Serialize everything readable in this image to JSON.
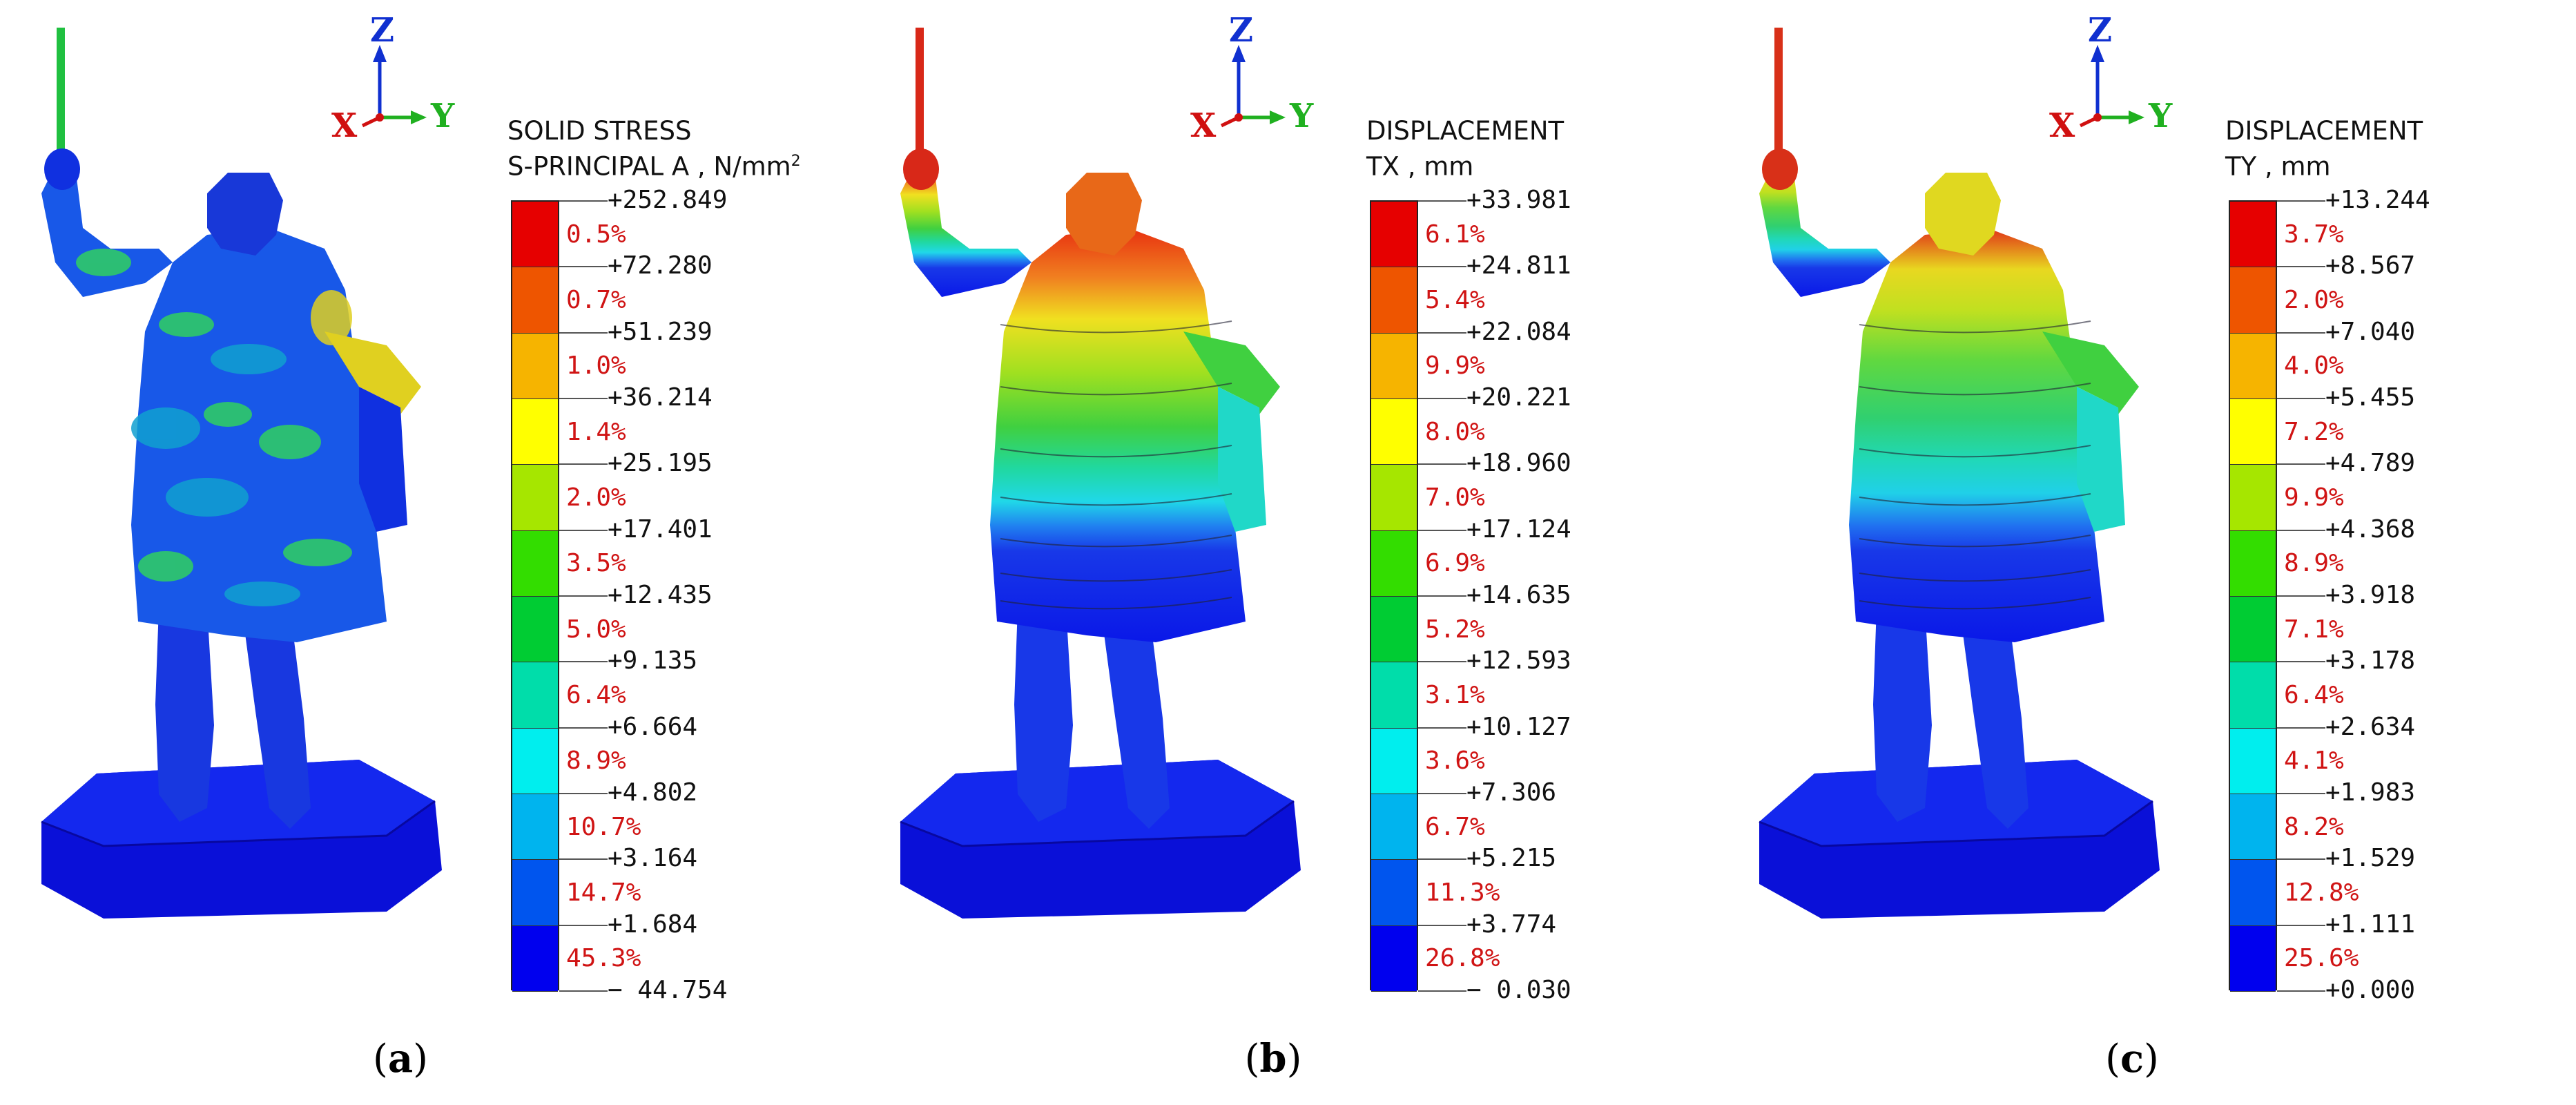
{
  "panels": [
    {
      "caption_open": "(",
      "caption_letter": "a",
      "caption_close": ")",
      "triad": {
        "z": "Z",
        "x": "X",
        "y": "Y"
      },
      "legend": {
        "title_line1": "SOLID STRESS",
        "title_line2": "S-PRINCIPAL A , N/mm",
        "title_sup": "2"
      },
      "colors": [
        "#e60000",
        "#ee5500",
        "#f6b400",
        "#ffff00",
        "#a6e600",
        "#33dd00",
        "#00cc33",
        "#00ddaa",
        "#00eeee",
        "#00b4ee",
        "#0055ee",
        "#0000ee"
      ],
      "tick_values": [
        "+252.849",
        "+72.280",
        "+51.239",
        "+36.214",
        "+25.195",
        "+17.401",
        "+12.435",
        "+9.135",
        "+6.664",
        "+4.802",
        "+3.164",
        "+1.684",
        "− 44.754"
      ],
      "percentages": [
        "0.5%",
        "0.7%",
        "1.0%",
        "1.4%",
        "2.0%",
        "3.5%",
        "5.0%",
        "6.4%",
        "8.9%",
        "10.7%",
        "14.7%",
        "45.3%"
      ]
    },
    {
      "caption_open": "(",
      "caption_letter": "b",
      "caption_close": ")",
      "triad": {
        "z": "Z",
        "x": "X",
        "y": "Y"
      },
      "legend": {
        "title_line1": "DISPLACEMENT",
        "title_line2": "TX , mm",
        "title_sup": ""
      },
      "colors": [
        "#e60000",
        "#ee5500",
        "#f6b400",
        "#ffff00",
        "#a6e600",
        "#33dd00",
        "#00cc33",
        "#00ddaa",
        "#00eeee",
        "#00b4ee",
        "#0055ee",
        "#0000ee"
      ],
      "tick_values": [
        "+33.981",
        "+24.811",
        "+22.084",
        "+20.221",
        "+18.960",
        "+17.124",
        "+14.635",
        "+12.593",
        "+10.127",
        "+7.306",
        "+5.215",
        "+3.774",
        "− 0.030"
      ],
      "percentages": [
        "6.1%",
        "5.4%",
        "9.9%",
        "8.0%",
        "7.0%",
        "6.9%",
        "5.2%",
        "3.1%",
        "3.6%",
        "6.7%",
        "11.3%",
        "26.8%"
      ]
    },
    {
      "caption_open": "(",
      "caption_letter": "c",
      "caption_close": ")",
      "triad": {
        "z": "Z",
        "x": "X",
        "y": "Y"
      },
      "legend": {
        "title_line1": "DISPLACEMENT",
        "title_line2": "TY , mm",
        "title_sup": ""
      },
      "colors": [
        "#e60000",
        "#ee5500",
        "#f6b400",
        "#ffff00",
        "#a6e600",
        "#33dd00",
        "#00cc33",
        "#00ddaa",
        "#00eeee",
        "#00b4ee",
        "#0055ee",
        "#0000ee"
      ],
      "tick_values": [
        "+13.244",
        "+8.567",
        "+7.040",
        "+5.455",
        "+4.789",
        "+4.368",
        "+3.918",
        "+3.178",
        "+2.634",
        "+1.983",
        "+1.529",
        "+1.111",
        "+0.000"
      ],
      "percentages": [
        "3.7%",
        "2.0%",
        "4.0%",
        "7.2%",
        "9.9%",
        "8.9%",
        "7.1%",
        "6.4%",
        "4.1%",
        "8.2%",
        "12.8%",
        "25.6%"
      ]
    }
  ]
}
